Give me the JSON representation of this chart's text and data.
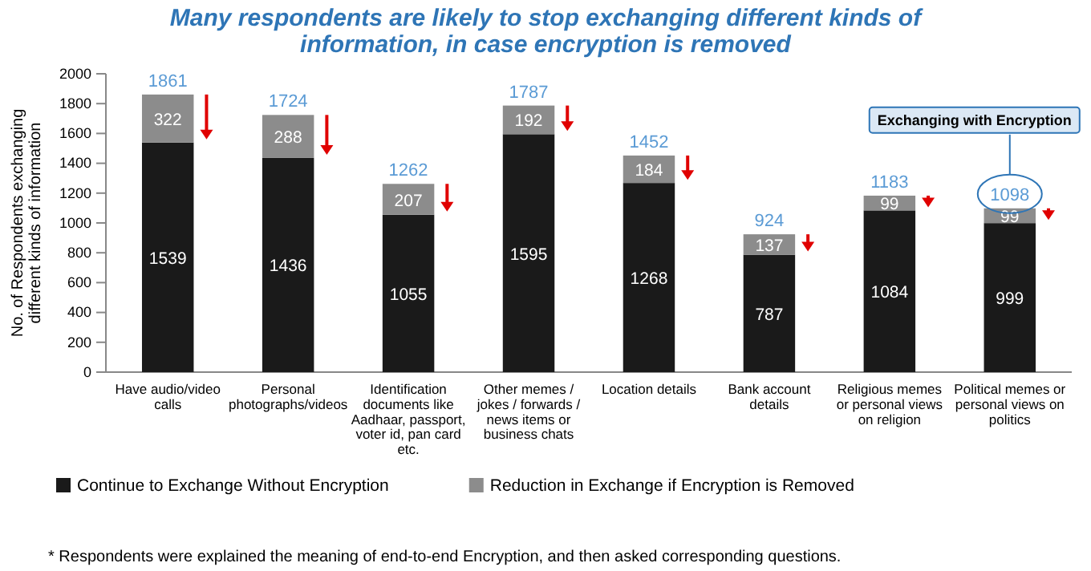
{
  "chart_data": {
    "type": "bar",
    "stacked": true,
    "title": "Many respondents are likely to stop exchanging different kinds of information, in case encryption is removed",
    "ylabel": "No. of Respondents exchanging different kinds of information",
    "categories": [
      "Have audio/video calls",
      "Personal photographs/videos",
      "Identification documents like Aadhaar, passport, voter id, pan card etc.",
      "Other memes / jokes / forwards / news items or business chats",
      "Location details",
      "Bank account details",
      "Religious memes or personal views on religion",
      "Political memes or personal views on politics"
    ],
    "series": [
      {
        "name": "Continue to Exchange Without Encryption",
        "color": "#1a1a1a",
        "values": [
          1539,
          1436,
          1055,
          1595,
          1268,
          787,
          1084,
          999
        ]
      },
      {
        "name": "Reduction in Exchange if Encryption is Removed",
        "color": "#8c8c8c",
        "values": [
          322,
          288,
          207,
          192,
          184,
          137,
          99,
          99
        ]
      }
    ],
    "totals": [
      "1861",
      "1724",
      "1262",
      "1787",
      "1452",
      "924",
      "1183",
      "1098"
    ],
    "data_labels": true,
    "ylim": [
      0,
      2000
    ],
    "yticks": [
      0,
      200,
      400,
      600,
      800,
      1000,
      1200,
      1400,
      1600,
      1800,
      2000
    ],
    "grid": false,
    "legend": "bottom",
    "annotations": [
      "Exchanging with Encryption",
      "* Respondents were explained the meaning of end-to-end Encryption, and then asked corresponding questions."
    ]
  }
}
